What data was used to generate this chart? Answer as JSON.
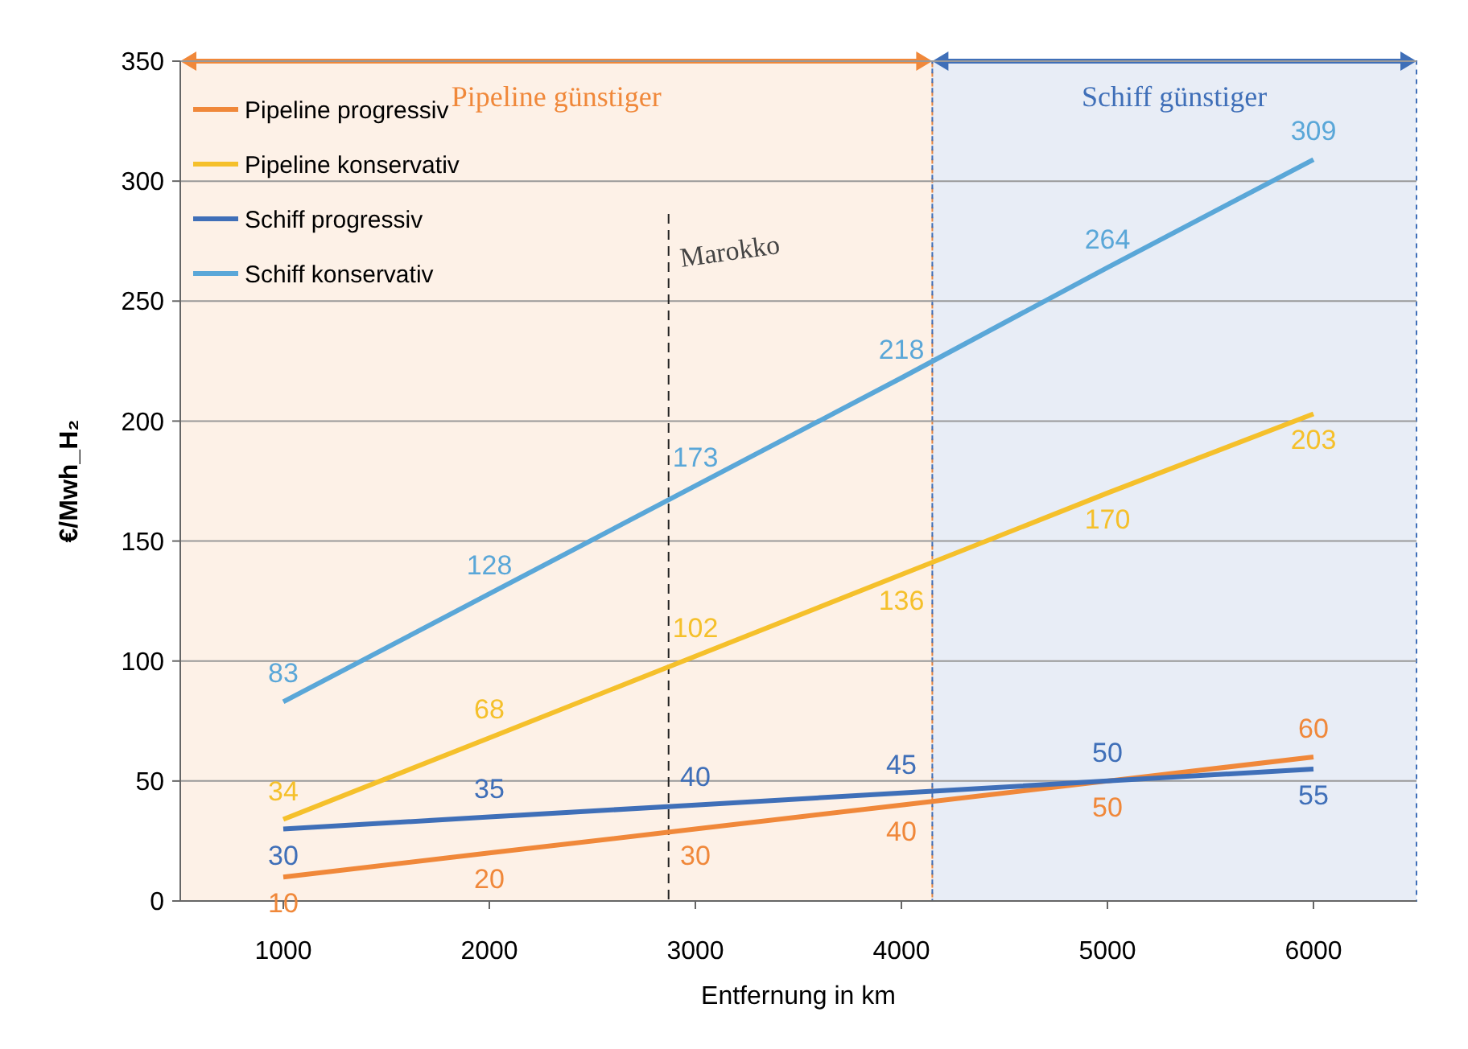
{
  "chart_data": {
    "type": "line",
    "ylabel": "€/Mwh_H₂",
    "xlabel": "Entfernung in km",
    "x": [
      1000,
      2000,
      3000,
      4000,
      5000,
      6000
    ],
    "xlim": [
      500,
      6500
    ],
    "xticks": [
      1000,
      2000,
      3000,
      4000,
      5000,
      6000
    ],
    "ylim": [
      0,
      350
    ],
    "yticks": [
      0,
      50,
      100,
      150,
      200,
      250,
      300,
      350
    ],
    "grid": "y",
    "legend": "top left",
    "marker": "none",
    "line_style": "solid",
    "data_labels": true,
    "series": [
      {
        "name": "Pipeline progressiv",
        "color": "#f0883a",
        "values": [
          10,
          20,
          30,
          40,
          50,
          60
        ]
      },
      {
        "name": "Pipeline konservativ",
        "color": "#f5c02b",
        "values": [
          34,
          68,
          102,
          136,
          170,
          203
        ]
      },
      {
        "name": "Schiff progressiv",
        "color": "#3f6fb8",
        "values": [
          30,
          35,
          40,
          45,
          50,
          55
        ]
      },
      {
        "name": "Schiff konservativ",
        "color": "#5aa7d8",
        "values": [
          83,
          128,
          173,
          218,
          264,
          309
        ]
      }
    ],
    "bands": [
      {
        "axis": "x",
        "from": 500,
        "to": 4150,
        "label": "Pipeline günstiger",
        "color": "#f0883a"
      },
      {
        "axis": "x",
        "from": 4150,
        "to": 6500,
        "label": "Schiff günstiger",
        "color": "#3f6fb8"
      }
    ],
    "ref_lines": [
      {
        "axis": "x",
        "value": 2870,
        "label": "Marokko",
        "line_style": "dashed",
        "color": "#222222"
      }
    ]
  }
}
